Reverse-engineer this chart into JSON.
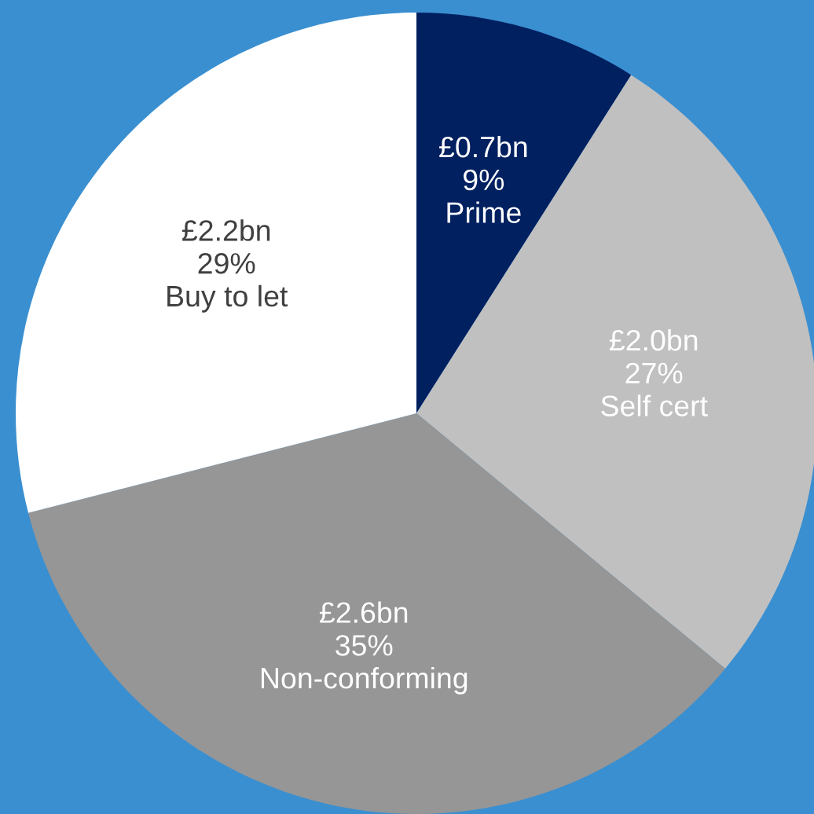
{
  "chart_data": {
    "type": "pie",
    "categories": [
      "Prime",
      "Self cert",
      "Non-conforming",
      "Buy to let"
    ],
    "values": [
      9,
      27,
      35,
      29
    ],
    "value_labels": [
      "£0.7bn\n9%",
      "£2.0bn\n27%",
      "£2.6bn\n35%",
      "£2.2bn\n29%"
    ],
    "colors": [
      "#002060",
      "#c0c0c0",
      "#969696",
      "#ffffff"
    ],
    "legend": false
  }
}
